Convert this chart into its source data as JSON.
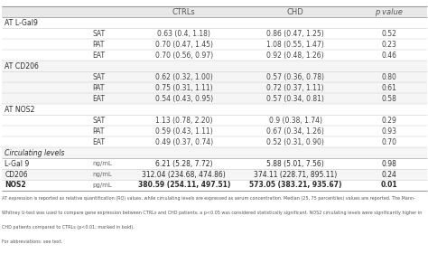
{
  "header_texts": [
    "CTRLs",
    "CHD",
    "p value"
  ],
  "sections": [
    {
      "title": "AT L-Gal9",
      "rows": [
        [
          "SAT",
          "0.63 (0.4, 1.18)",
          "0.86 (0.47, 1.25)",
          "0.52"
        ],
        [
          "PAT",
          "0.70 (0.47, 1.45)",
          "1.08 (0.55, 1.47)",
          "0.23"
        ],
        [
          "EAT",
          "0.70 (0.56, 0.97)",
          "0.92 (0.48, 1.26)",
          "0.46"
        ]
      ]
    },
    {
      "title": "AT CD206",
      "rows": [
        [
          "SAT",
          "0.62 (0.32, 1.00)",
          "0.57 (0.36, 0.78)",
          "0.80"
        ],
        [
          "PAT",
          "0.75 (0.31, 1.11)",
          "0.72 (0.37, 1.11)",
          "0.61"
        ],
        [
          "EAT",
          "0.54 (0.43, 0.95)",
          "0.57 (0.34, 0.81)",
          "0.58"
        ]
      ]
    },
    {
      "title": "AT NOS2",
      "rows": [
        [
          "SAT",
          "1.13 (0.78, 2.20)",
          "0.9 (0.38, 1.74)",
          "0.29"
        ],
        [
          "PAT",
          "0.59 (0.43, 1.11)",
          "0.67 (0.34, 1.26)",
          "0.93"
        ],
        [
          "EAT",
          "0.49 (0.37, 0.74)",
          "0.52 (0.31, 0.90)",
          "0.70"
        ]
      ]
    }
  ],
  "circulating_title": "Circulating levels",
  "circulating_rows": [
    [
      "L-Gal 9",
      "ng/mL",
      "6.21 (5.28, 7.72)",
      "5.88 (5.01, 7.56)",
      "0.98",
      false
    ],
    [
      "CD206",
      "ng/mL",
      "312.04 (234.68, 474.86)",
      "374.11 (228.71, 895.11)",
      "0.24",
      false
    ],
    [
      "NOS2",
      "pg/mL",
      "380.59 (254.11, 497.51)",
      "573.05 (383.21, 935.67)",
      "0.01",
      true
    ]
  ],
  "footnote1": "AT expression is reported as relative quantification (RQ) values, while circulating levels are expressed as serum concentration. Median (25, 75 percentiles) values are reported. The Mann-",
  "footnote2": "Whitney U-test was used to compare gene expression between CTRLs and CHD patients; a p<0.05 was considered statistically significant. NOS2 circulating levels were significantly higher in",
  "footnote3": "CHD patients compared to CTRLs (p<0.01; marked in bold).",
  "footnote4": "For abbreviations: see text.",
  "header_bg": "#e8e8e8",
  "row_bg_alt": "#f5f5f5",
  "row_bg_white": "#ffffff",
  "divider_color": "#cccccc",
  "strong_divider": "#aaaaaa",
  "text_dark": "#2a2a2a",
  "text_mid": "#444444",
  "text_light": "#666666"
}
